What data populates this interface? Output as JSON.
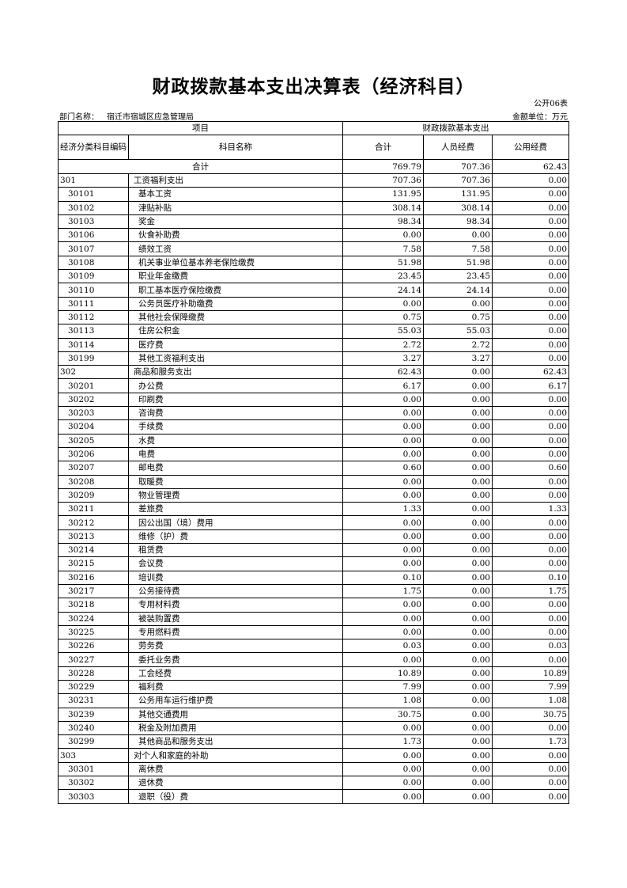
{
  "title": "财政拨款基本支出决算表（经济科目）",
  "form_no": "公开06表",
  "dept_label": "部门名称：",
  "dept_name": "宿迁市宿城区应急管理局",
  "unit": "金额单位：万元",
  "header": {
    "item": "项目",
    "basic": "财政拨款基本支出",
    "code": "经济分类科目编码",
    "name": "科目名称",
    "total": "合计",
    "personnel": "人员经费",
    "public": "公用经费"
  },
  "total_row": {
    "label": "合计",
    "total": "769.79",
    "personnel": "707.36",
    "public": "62.43"
  },
  "rows": [
    [
      "301",
      "工资福利支出",
      "707.36",
      "707.36",
      "0.00"
    ],
    [
      "30101",
      "基本工资",
      "131.95",
      "131.95",
      "0.00"
    ],
    [
      "30102",
      "津贴补贴",
      "308.14",
      "308.14",
      "0.00"
    ],
    [
      "30103",
      "奖金",
      "98.34",
      "98.34",
      "0.00"
    ],
    [
      "30106",
      "伙食补助费",
      "0.00",
      "0.00",
      "0.00"
    ],
    [
      "30107",
      "绩效工资",
      "7.58",
      "7.58",
      "0.00"
    ],
    [
      "30108",
      "机关事业单位基本养老保险缴费",
      "51.98",
      "51.98",
      "0.00"
    ],
    [
      "30109",
      "职业年金缴费",
      "23.45",
      "23.45",
      "0.00"
    ],
    [
      "30110",
      "职工基本医疗保险缴费",
      "24.14",
      "24.14",
      "0.00"
    ],
    [
      "30111",
      "公务员医疗补助缴费",
      "0.00",
      "0.00",
      "0.00"
    ],
    [
      "30112",
      "其他社会保障缴费",
      "0.75",
      "0.75",
      "0.00"
    ],
    [
      "30113",
      "住房公积金",
      "55.03",
      "55.03",
      "0.00"
    ],
    [
      "30114",
      "医疗费",
      "2.72",
      "2.72",
      "0.00"
    ],
    [
      "30199",
      "其他工资福利支出",
      "3.27",
      "3.27",
      "0.00"
    ],
    [
      "302",
      "商品和服务支出",
      "62.43",
      "0.00",
      "62.43"
    ],
    [
      "30201",
      "办公费",
      "6.17",
      "0.00",
      "6.17"
    ],
    [
      "30202",
      "印刷费",
      "0.00",
      "0.00",
      "0.00"
    ],
    [
      "30203",
      "咨询费",
      "0.00",
      "0.00",
      "0.00"
    ],
    [
      "30204",
      "手续费",
      "0.00",
      "0.00",
      "0.00"
    ],
    [
      "30205",
      "水费",
      "0.00",
      "0.00",
      "0.00"
    ],
    [
      "30206",
      "电费",
      "0.00",
      "0.00",
      "0.00"
    ],
    [
      "30207",
      "邮电费",
      "0.60",
      "0.00",
      "0.60"
    ],
    [
      "30208",
      "取暖费",
      "0.00",
      "0.00",
      "0.00"
    ],
    [
      "30209",
      "物业管理费",
      "0.00",
      "0.00",
      "0.00"
    ],
    [
      "30211",
      "差旅费",
      "1.33",
      "0.00",
      "1.33"
    ],
    [
      "30212",
      "因公出国（境）费用",
      "0.00",
      "0.00",
      "0.00"
    ],
    [
      "30213",
      "维修（护）费",
      "0.00",
      "0.00",
      "0.00"
    ],
    [
      "30214",
      "租赁费",
      "0.00",
      "0.00",
      "0.00"
    ],
    [
      "30215",
      "会议费",
      "0.00",
      "0.00",
      "0.00"
    ],
    [
      "30216",
      "培训费",
      "0.10",
      "0.00",
      "0.10"
    ],
    [
      "30217",
      "公务接待费",
      "1.75",
      "0.00",
      "1.75"
    ],
    [
      "30218",
      "专用材料费",
      "0.00",
      "0.00",
      "0.00"
    ],
    [
      "30224",
      "被装购置费",
      "0.00",
      "0.00",
      "0.00"
    ],
    [
      "30225",
      "专用燃料费",
      "0.00",
      "0.00",
      "0.00"
    ],
    [
      "30226",
      "劳务费",
      "0.03",
      "0.00",
      "0.03"
    ],
    [
      "30227",
      "委托业务费",
      "0.00",
      "0.00",
      "0.00"
    ],
    [
      "30228",
      "工会经费",
      "10.89",
      "0.00",
      "10.89"
    ],
    [
      "30229",
      "福利费",
      "7.99",
      "0.00",
      "7.99"
    ],
    [
      "30231",
      "公务用车运行维护费",
      "1.08",
      "0.00",
      "1.08"
    ],
    [
      "30239",
      "其他交通费用",
      "30.75",
      "0.00",
      "30.75"
    ],
    [
      "30240",
      "税金及附加费用",
      "0.00",
      "0.00",
      "0.00"
    ],
    [
      "30299",
      "其他商品和服务支出",
      "1.73",
      "0.00",
      "1.73"
    ],
    [
      "303",
      "对个人和家庭的补助",
      "0.00",
      "0.00",
      "0.00"
    ],
    [
      "30301",
      "离休费",
      "0.00",
      "0.00",
      "0.00"
    ],
    [
      "30302",
      "退休费",
      "0.00",
      "0.00",
      "0.00"
    ],
    [
      "30303",
      "退职（役）费",
      "0.00",
      "0.00",
      "0.00"
    ]
  ]
}
